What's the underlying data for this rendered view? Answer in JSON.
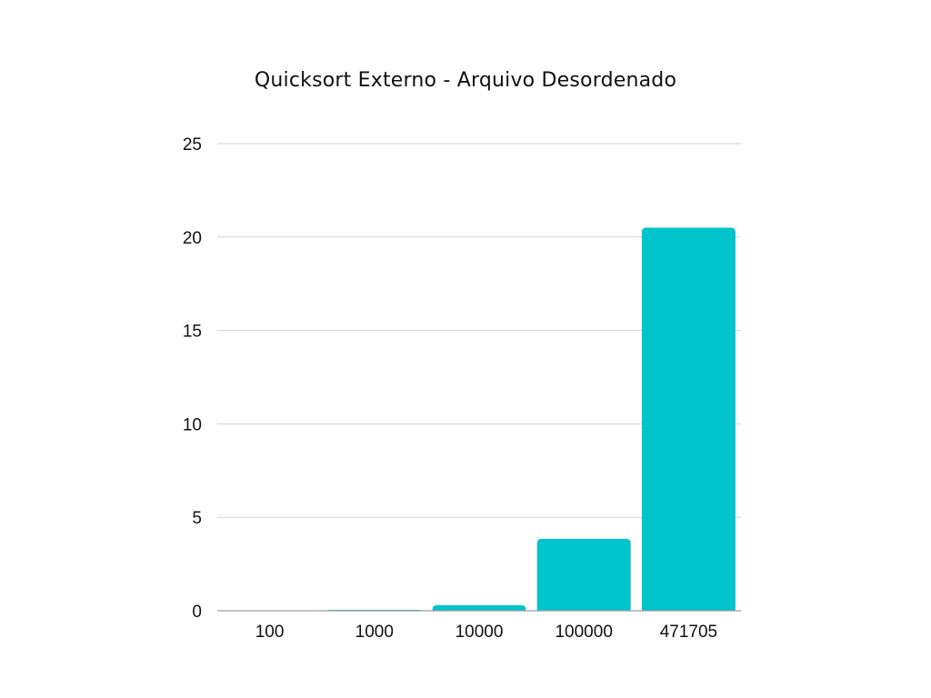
{
  "chart_data": {
    "type": "bar",
    "title": "Quicksort Externo - Arquivo Desordenado",
    "xlabel": "",
    "ylabel": "",
    "categories": [
      "100",
      "1000",
      "10000",
      "100000",
      "471705"
    ],
    "values": [
      0.0,
      0.05,
      0.3,
      3.85,
      20.5
    ],
    "ylim": [
      0,
      25
    ],
    "yticks": [
      0,
      5,
      10,
      15,
      20,
      25
    ],
    "grid": true,
    "legend": "none",
    "bar_color": "#00C4CC",
    "grid_color": "#D3D3D3",
    "axis_color": "#9E9E9E"
  }
}
